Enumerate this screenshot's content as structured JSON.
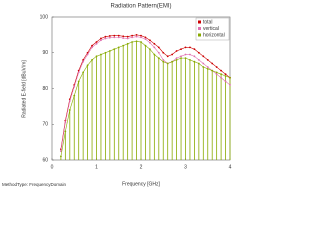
{
  "chart_data": {
    "type": "line",
    "title": "Radiation Pattern(EMI)",
    "x_label": "Frequency [GHz]",
    "y_label": "Radiated E-field [dBuV/m]",
    "note": "MethodType: FrequencyDomain",
    "x": [
      0.2,
      0.3,
      0.4,
      0.5,
      0.6,
      0.7,
      0.8,
      0.9,
      1.0,
      1.1,
      1.2,
      1.3,
      1.4,
      1.5,
      1.6,
      1.7,
      1.8,
      1.9,
      2.0,
      2.1,
      2.2,
      2.3,
      2.4,
      2.5,
      2.6,
      2.7,
      2.8,
      2.9,
      3.0,
      3.1,
      3.2,
      3.3,
      3.4,
      3.5,
      3.6,
      3.7,
      3.8,
      3.9,
      4.0
    ],
    "series": [
      {
        "name": "total",
        "color": "#cc0000",
        "values": [
          63,
          71,
          77,
          81,
          85,
          88,
          90,
          92,
          93,
          94,
          94.5,
          94.7,
          94.8,
          94.8,
          94.6,
          94.5,
          94.8,
          95,
          94.8,
          94.3,
          93.5,
          92.5,
          91.5,
          90,
          89,
          89.5,
          90.5,
          91,
          91.5,
          91.5,
          91,
          90,
          89,
          88,
          87,
          86,
          85,
          84,
          83
        ]
      },
      {
        "name": "vertical",
        "color": "#e070b0",
        "values": [
          62.5,
          70.5,
          76.5,
          80.5,
          84.5,
          87.5,
          89.5,
          91.5,
          92.5,
          93.5,
          94,
          94.2,
          94.3,
          94.3,
          94.1,
          94,
          94.3,
          94.5,
          94.3,
          93.8,
          92.8,
          91.5,
          90,
          88,
          87,
          87.5,
          88.5,
          89,
          89.5,
          89.5,
          89,
          88,
          87,
          86,
          85,
          84,
          83,
          82,
          81
        ]
      },
      {
        "name": "horizontal",
        "color": "#88aa00",
        "values": [
          61,
          68,
          74,
          78,
          82,
          84.5,
          86.5,
          88,
          89,
          89.5,
          90,
          90.5,
          91,
          91.5,
          92,
          92.5,
          93,
          93.2,
          93,
          92,
          91,
          89.5,
          88.5,
          87.5,
          87,
          87.5,
          88,
          88.5,
          88.5,
          88,
          87.5,
          87,
          86,
          85.5,
          85,
          84.5,
          84,
          83.5,
          83
        ]
      }
    ],
    "xlim": [
      0,
      4
    ],
    "xticks": [
      0,
      1,
      2,
      3,
      4
    ],
    "ylim": [
      60,
      100
    ],
    "yticks": [
      60,
      70,
      80,
      90,
      100
    ],
    "grid": false,
    "legend": "upper right"
  }
}
